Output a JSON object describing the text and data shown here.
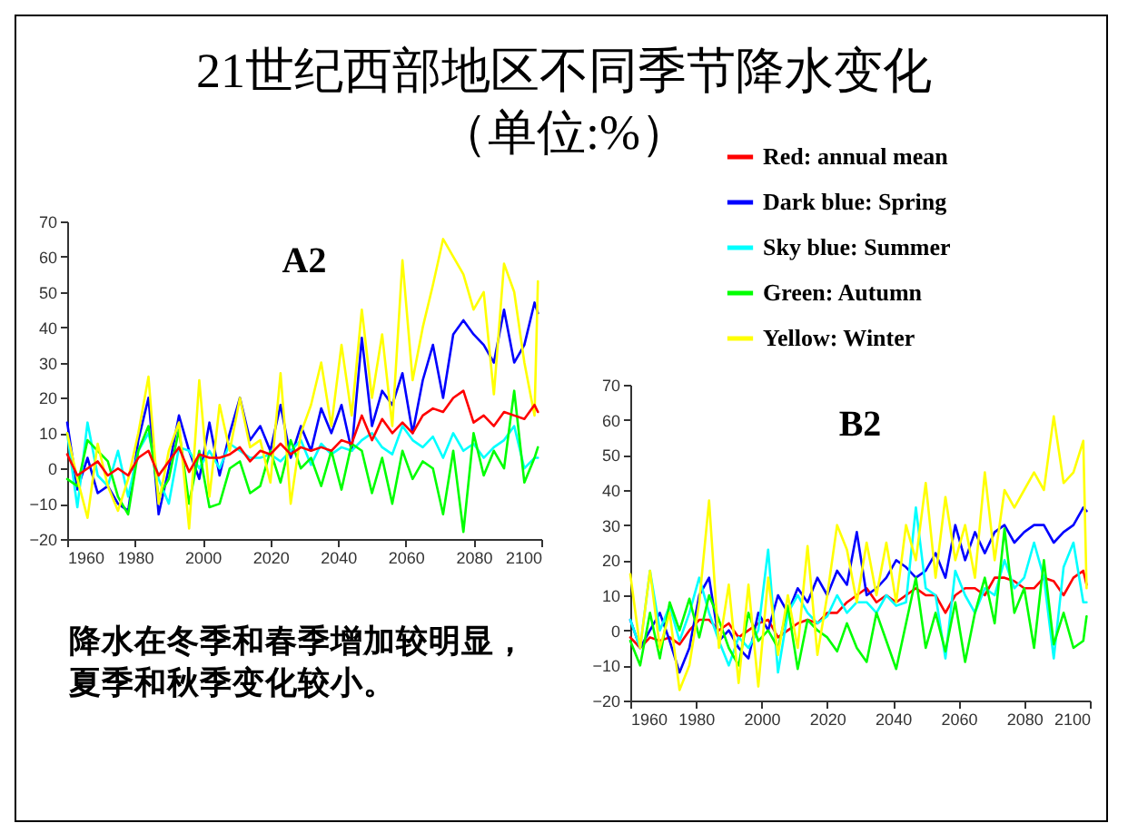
{
  "chart_data": [
    {
      "type": "line",
      "title": "21世纪西部地区不同季节降水变化",
      "subtitle": "（单位:%）",
      "annotations": [
        "A2",
        "降水在冬季和春季增加较明显，夏季和秋季变化较小。"
      ],
      "x": [
        1960,
        1963,
        1966,
        1969,
        1972,
        1975,
        1978,
        1981,
        1984,
        1987,
        1990,
        1993,
        1996,
        1999,
        2002,
        2005,
        2008,
        2011,
        2014,
        2017,
        2020,
        2023,
        2026,
        2029,
        2032,
        2035,
        2038,
        2041,
        2044,
        2047,
        2050,
        2053,
        2056,
        2059,
        2062,
        2065,
        2068,
        2071,
        2074,
        2077,
        2080,
        2083,
        2086,
        2089,
        2092,
        2095,
        2098,
        2099
      ],
      "series": [
        {
          "color": "#0000ff",
          "values": [
            13,
            -6,
            3,
            -7,
            -5,
            -10,
            -12,
            8,
            20,
            -13,
            0,
            15,
            5,
            -3,
            13,
            -2,
            10,
            20,
            8,
            12,
            5,
            18,
            3,
            12,
            5,
            17,
            10,
            18,
            5,
            37,
            12,
            22,
            18,
            27,
            10,
            25,
            35,
            20,
            38,
            42,
            38,
            35,
            30,
            45,
            30,
            35,
            47,
            44
          ]
        },
        {
          "color": "#00ffff",
          "values": [
            10,
            -11,
            13,
            -2,
            -5,
            5,
            -8,
            5,
            10,
            -3,
            -10,
            6,
            5,
            0,
            5,
            0,
            7,
            5,
            3,
            3,
            4,
            2,
            5,
            8,
            1,
            7,
            4,
            6,
            5,
            8,
            10,
            6,
            4,
            12,
            8,
            6,
            9,
            3,
            10,
            5,
            7,
            3,
            6,
            8,
            12,
            0,
            3,
            3
          ]
        },
        {
          "color": "#00ff00",
          "values": [
            -3,
            -5,
            8,
            5,
            2,
            -8,
            -13,
            5,
            12,
            -8,
            -3,
            11,
            -10,
            5,
            -11,
            -10,
            0,
            2,
            -7,
            -5,
            5,
            -4,
            8,
            0,
            3,
            -5,
            5,
            -6,
            7,
            5,
            -7,
            3,
            -10,
            5,
            -3,
            2,
            0,
            -13,
            5,
            -18,
            10,
            -2,
            5,
            0,
            22,
            -4,
            3,
            6
          ]
        },
        {
          "color": "#ffff00",
          "values": [
            10,
            -3,
            -14,
            7,
            -5,
            -12,
            -3,
            10,
            26,
            -10,
            5,
            13,
            -17,
            25,
            -8,
            18,
            5,
            20,
            6,
            8,
            -4,
            27,
            -10,
            10,
            18,
            30,
            12,
            35,
            15,
            45,
            20,
            38,
            12,
            59,
            25,
            40,
            52,
            65,
            60,
            55,
            45,
            50,
            21,
            58,
            50,
            30,
            15,
            53
          ]
        },
        {
          "color": "#ff0000",
          "values": [
            4,
            -2,
            0,
            2,
            -2,
            0,
            -2,
            3,
            5,
            -2,
            2,
            6,
            -1,
            4,
            3,
            3,
            4,
            6,
            2,
            5,
            4,
            7,
            4,
            6,
            5,
            6,
            5,
            8,
            7,
            15,
            8,
            14,
            10,
            13,
            10,
            15,
            17,
            16,
            20,
            22,
            13,
            15,
            12,
            16,
            15,
            14,
            18,
            16
          ]
        }
      ],
      "xlim": [
        1960,
        2100
      ],
      "xticks": [
        1960,
        1980,
        2000,
        2020,
        2040,
        2060,
        2080,
        2100
      ],
      "ylim": [
        -20,
        70
      ],
      "yticks": [
        -20,
        -10,
        0,
        10,
        20,
        30,
        40,
        50,
        60,
        70
      ],
      "grid": false,
      "legend": false
    },
    {
      "type": "line",
      "title": "B2",
      "x": [
        1960,
        1963,
        1966,
        1969,
        1972,
        1975,
        1978,
        1981,
        1984,
        1987,
        1990,
        1993,
        1996,
        1999,
        2002,
        2005,
        2008,
        2011,
        2014,
        2017,
        2020,
        2023,
        2026,
        2029,
        2032,
        2035,
        2038,
        2041,
        2044,
        2047,
        2050,
        2053,
        2056,
        2059,
        2062,
        2065,
        2068,
        2071,
        2074,
        2077,
        2080,
        2083,
        2086,
        2089,
        2092,
        2095,
        2098,
        2099
      ],
      "series": [
        {
          "name": "Red: annual mean",
          "color": "#ff0000",
          "values": [
            -2,
            -5,
            -2,
            -3,
            -2,
            -4,
            0,
            3,
            3,
            0,
            2,
            -2,
            0,
            2,
            3,
            -2,
            0,
            2,
            3,
            2,
            5,
            5,
            8,
            10,
            12,
            8,
            10,
            8,
            10,
            12,
            10,
            10,
            5,
            10,
            12,
            12,
            10,
            15,
            15,
            14,
            12,
            12,
            15,
            14,
            10,
            15,
            17,
            13
          ]
        },
        {
          "name": "Dark blue: Spring",
          "color": "#0000ff",
          "values": [
            3,
            -5,
            0,
            5,
            -3,
            -12,
            -5,
            10,
            15,
            -3,
            0,
            -5,
            -8,
            5,
            0,
            10,
            5,
            12,
            8,
            15,
            10,
            17,
            13,
            28,
            10,
            12,
            15,
            20,
            18,
            15,
            17,
            22,
            15,
            30,
            20,
            28,
            22,
            28,
            30,
            25,
            28,
            30,
            30,
            25,
            28,
            30,
            35,
            34
          ]
        },
        {
          "name": "Sky blue: Summer",
          "color": "#00ffff",
          "values": [
            3,
            -5,
            17,
            0,
            7,
            -3,
            5,
            15,
            5,
            -3,
            -10,
            -2,
            -5,
            0,
            23,
            -12,
            5,
            10,
            5,
            2,
            4,
            10,
            5,
            8,
            8,
            5,
            10,
            7,
            8,
            35,
            12,
            10,
            -8,
            17,
            10,
            5,
            12,
            10,
            20,
            12,
            15,
            25,
            15,
            -8,
            18,
            25,
            8,
            8
          ]
        },
        {
          "name": "Green: Autumn",
          "color": "#00ff00",
          "values": [
            -3,
            -10,
            5,
            -8,
            8,
            0,
            9,
            -2,
            10,
            3,
            -5,
            -10,
            5,
            -3,
            0,
            -5,
            7,
            -11,
            3,
            0,
            -2,
            -6,
            2,
            -5,
            -9,
            5,
            -3,
            -11,
            2,
            15,
            -5,
            5,
            -6,
            8,
            -9,
            5,
            15,
            2,
            29,
            5,
            12,
            -5,
            20,
            -4,
            5,
            -5,
            -3,
            4
          ]
        },
        {
          "name": "Yellow: Winter",
          "color": "#ffff00",
          "values": [
            16,
            -5,
            17,
            -5,
            5,
            -17,
            -10,
            8,
            37,
            -5,
            13,
            -15,
            13,
            -16,
            15,
            -7,
            10,
            -5,
            24,
            -7,
            10,
            30,
            23,
            8,
            25,
            10,
            25,
            8,
            30,
            20,
            42,
            15,
            38,
            20,
            30,
            15,
            45,
            20,
            40,
            35,
            40,
            45,
            40,
            61,
            42,
            45,
            54,
            12
          ]
        }
      ],
      "xlim": [
        1960,
        2100
      ],
      "xticks": [
        1960,
        1980,
        2000,
        2020,
        2040,
        2060,
        2080,
        2100
      ],
      "ylim": [
        -20,
        70
      ],
      "yticks": [
        -20,
        -10,
        0,
        10,
        20,
        30,
        40,
        50,
        60,
        70
      ],
      "grid": false,
      "legend": "top"
    }
  ]
}
